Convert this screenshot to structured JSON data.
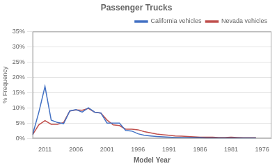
{
  "chart_data": {
    "type": "line",
    "title": "Passenger Trucks",
    "x_label": "Model Year",
    "y_label": "% Frequency",
    "x": [
      2013,
      2012,
      2011,
      2010,
      2009,
      2008,
      2007,
      2006,
      2005,
      2004,
      2003,
      2002,
      2001,
      2000,
      1999,
      1998,
      1997,
      1996,
      1995,
      1994,
      1993,
      1992,
      1991,
      1990,
      1989,
      1988,
      1987,
      1986,
      1985,
      1984,
      1983,
      1982,
      1981,
      1980,
      1979,
      1978,
      1977
    ],
    "series": [
      {
        "name": "California vehicles",
        "color": "#4472C4",
        "values": [
          0.012,
          0.085,
          0.17,
          0.06,
          0.052,
          0.048,
          0.09,
          0.094,
          0.086,
          0.1,
          0.086,
          0.083,
          0.05,
          0.05,
          0.05,
          0.026,
          0.024,
          0.015,
          0.01,
          0.008,
          0.006,
          0.005,
          0.004,
          0.003,
          0.002,
          0.002,
          0.002,
          0.002,
          0.001,
          0.001,
          0.001,
          0.001,
          0.001,
          0.001,
          0.001,
          0.001,
          0.001
        ]
      },
      {
        "name": "Nevada vehicles",
        "color": "#C0504D",
        "values": [
          0.012,
          0.044,
          0.058,
          0.046,
          0.046,
          0.052,
          0.09,
          0.093,
          0.092,
          0.098,
          0.086,
          0.083,
          0.06,
          0.044,
          0.042,
          0.03,
          0.03,
          0.028,
          0.022,
          0.018,
          0.014,
          0.012,
          0.01,
          0.008,
          0.007,
          0.006,
          0.005,
          0.004,
          0.004,
          0.004,
          0.003,
          0.003,
          0.004,
          0.003,
          0.002,
          0.002,
          0.002
        ]
      }
    ],
    "xlim": [
      2013.0,
      1974.5
    ],
    "xticks": [
      2011,
      2006,
      2001,
      1996,
      1991,
      1986,
      1981,
      1976
    ],
    "ylim": [
      0,
      0.35
    ],
    "yticks": [
      {
        "value": 0.0,
        "label": "0%"
      },
      {
        "value": 0.05,
        "label": "5%"
      },
      {
        "value": 0.1,
        "label": "10%"
      },
      {
        "value": 0.15,
        "label": "15%"
      },
      {
        "value": 0.2,
        "label": "20%"
      },
      {
        "value": 0.25,
        "label": "25%"
      },
      {
        "value": 0.3,
        "label": "30%"
      },
      {
        "value": 0.35,
        "label": "35%"
      }
    ],
    "grid": "y",
    "legend": "upper right"
  }
}
